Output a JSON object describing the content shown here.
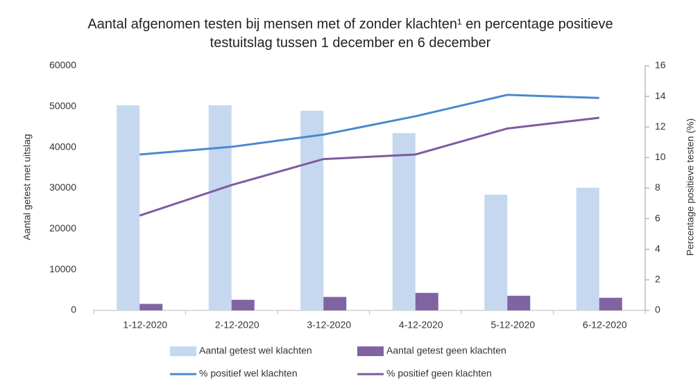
{
  "chart_data": {
    "type": "bar",
    "title": "Aantal afgenomen testen bij mensen met of zonder klachten¹ en percentage positieve testuitslag tussen 1 december en 6 december",
    "categories": [
      "1-12-2020",
      "2-12-2020",
      "3-12-2020",
      "4-12-2020",
      "5-12-2020",
      "6-12-2020"
    ],
    "y_label": "Aantal getest met uitslag",
    "y2_label": "Percentage positieve testen (%)",
    "ylim": [
      0,
      60000
    ],
    "yticks": [
      0,
      10000,
      20000,
      30000,
      40000,
      50000,
      60000
    ],
    "y2lim": [
      0,
      16
    ],
    "y2ticks": [
      0,
      2,
      4,
      6,
      8,
      10,
      12,
      14,
      16
    ],
    "series": [
      {
        "name": "Aantal getest wel klachten",
        "type": "bar",
        "color": "#c5d8f0",
        "values": [
          50300,
          50300,
          49000,
          43500,
          28400,
          30100
        ]
      },
      {
        "name": "Aantal getest geen klachten",
        "type": "bar",
        "color": "#8064a2",
        "values": [
          1600,
          2600,
          3300,
          4300,
          3600,
          3100
        ]
      },
      {
        "name": "% positief wel klachten",
        "type": "line",
        "axis": "y2",
        "color": "#4a88d0",
        "values": [
          10.2,
          10.7,
          11.5,
          12.7,
          14.1,
          13.9
        ]
      },
      {
        "name": "% positief geen klachten",
        "type": "line",
        "axis": "y2",
        "color": "#7e5aa0",
        "values": [
          6.2,
          8.2,
          9.9,
          10.2,
          11.9,
          12.6
        ]
      }
    ]
  }
}
